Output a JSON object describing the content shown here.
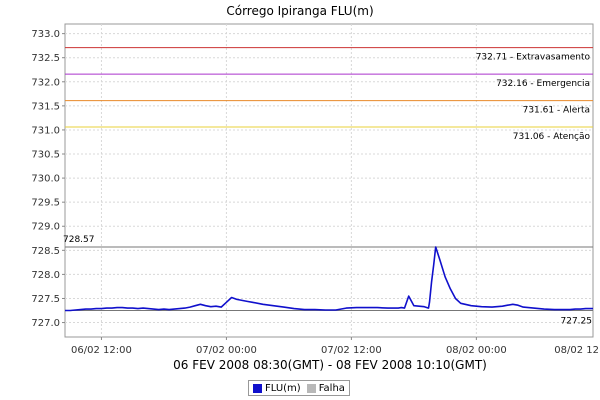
{
  "chart_data": {
    "type": "line",
    "title": "Córrego Ipiranga FLU(m)",
    "xlabel": "06 FEV 2008 08:30(GMT) - 08 FEV 2008 10:10(GMT)",
    "ylabel": "",
    "ylim": [
      726.7,
      733.2
    ],
    "y_ticks": [
      "727.0",
      "727.5",
      "728.0",
      "728.5",
      "729.0",
      "729.5",
      "730.0",
      "730.5",
      "731.0",
      "731.5",
      "732.0",
      "732.5",
      "733.0"
    ],
    "y_tick_values": [
      727.0,
      727.5,
      728.0,
      728.5,
      729.0,
      729.5,
      730.0,
      730.5,
      731.0,
      731.5,
      732.0,
      732.5,
      733.0
    ],
    "x_range_hours": [
      0,
      50.7
    ],
    "x_ticks": [
      {
        "label": "06/02 12:00",
        "hours": 3.5
      },
      {
        "label": "07/02 00:00",
        "hours": 15.5
      },
      {
        "label": "07/02 12:00",
        "hours": 27.5
      },
      {
        "label": "08/02 00:00",
        "hours": 39.5
      },
      {
        "label": "08/02 12",
        "hours": 51.5
      }
    ],
    "grid": true,
    "thresholds": [
      {
        "value": 732.71,
        "label": "732.71 - Extravasamento",
        "color": "#cc3333"
      },
      {
        "value": 732.16,
        "label": "732.16 - Emergencia",
        "color": "#aa33cc"
      },
      {
        "value": 731.61,
        "label": "731.61 - Alerta",
        "color": "#e88a2a"
      },
      {
        "value": 731.06,
        "label": "731.06 - Atenção",
        "color": "#e8d23a"
      }
    ],
    "markers": [
      {
        "value": 728.57,
        "label": "728.57",
        "color": "#777777"
      },
      {
        "value": 727.25,
        "label": "727.25",
        "color": "#777777"
      }
    ],
    "series": [
      {
        "name": "FLU(m)",
        "color": "#1010cc",
        "x": [
          0.0,
          0.5,
          1.0,
          1.5,
          2.0,
          2.5,
          3.0,
          3.5,
          4.0,
          4.5,
          5.0,
          5.5,
          6.0,
          6.5,
          7.0,
          7.5,
          8.0,
          8.5,
          9.0,
          9.5,
          10.0,
          10.5,
          11.0,
          11.5,
          12.0,
          12.5,
          13.0,
          13.5,
          14.0,
          14.5,
          15.0,
          15.5,
          16.0,
          16.5,
          17.0,
          17.5,
          18.0,
          19.0,
          20.0,
          21.0,
          22.0,
          23.0,
          24.0,
          25.0,
          26.0,
          27.0,
          28.0,
          29.0,
          30.0,
          31.0,
          32.0,
          32.3,
          32.6,
          33.0,
          33.5,
          34.0,
          34.5,
          34.9,
          35.0,
          35.2,
          35.4,
          35.6,
          36.0,
          36.5,
          37.0,
          37.5,
          38.0,
          39.0,
          40.0,
          41.0,
          42.0,
          42.5,
          43.0,
          43.5,
          44.0,
          45.0,
          46.0,
          47.0,
          48.0,
          48.5,
          49.0,
          49.5,
          50.0,
          50.7
        ],
        "y": [
          727.25,
          727.25,
          727.26,
          727.27,
          727.28,
          727.28,
          727.29,
          727.29,
          727.3,
          727.3,
          727.31,
          727.31,
          727.3,
          727.3,
          727.29,
          727.3,
          727.29,
          727.28,
          727.27,
          727.28,
          727.27,
          727.28,
          727.29,
          727.3,
          727.32,
          727.35,
          727.38,
          727.35,
          727.33,
          727.34,
          727.32,
          727.42,
          727.52,
          727.48,
          727.46,
          727.44,
          727.42,
          727.38,
          727.35,
          727.32,
          727.29,
          727.27,
          727.27,
          727.26,
          727.26,
          727.3,
          727.31,
          727.31,
          727.31,
          727.3,
          727.3,
          727.31,
          727.3,
          727.55,
          727.35,
          727.34,
          727.33,
          727.3,
          727.42,
          727.85,
          728.2,
          728.57,
          728.3,
          727.95,
          727.7,
          727.5,
          727.4,
          727.35,
          727.33,
          727.32,
          727.34,
          727.36,
          727.38,
          727.36,
          727.32,
          727.3,
          727.28,
          727.27,
          727.27,
          727.27,
          727.28,
          727.28,
          727.29,
          727.29
        ]
      }
    ],
    "legend": {
      "placement": "bottom-center",
      "entries": [
        {
          "label": "FLU(m)",
          "color": "#1010cc"
        },
        {
          "label": "Falha",
          "color": "#b8b8b8"
        }
      ]
    }
  }
}
